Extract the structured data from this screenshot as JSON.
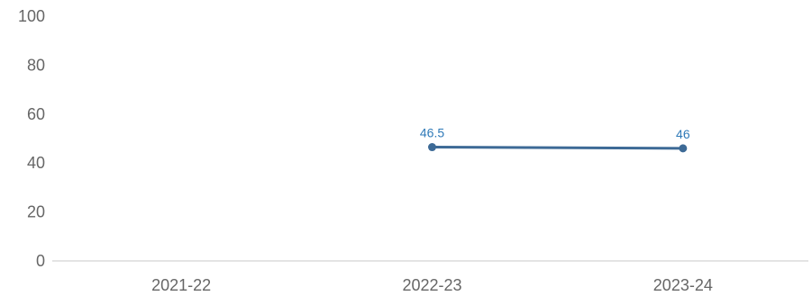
{
  "chart_data": {
    "type": "line",
    "categories": [
      "2021-22",
      "2022-23",
      "2023-24"
    ],
    "series": [
      {
        "values": [
          null,
          46.5,
          46
        ],
        "data_labels": [
          "",
          "46.5",
          "46"
        ],
        "color": "#3d6a96",
        "label_color": "#2f7ab8"
      }
    ],
    "yticks": [
      "0",
      "20",
      "40",
      "60",
      "80",
      "100"
    ],
    "ylim": [
      0,
      100
    ],
    "grid": false,
    "legend": "none",
    "title": "",
    "xlabel": "",
    "ylabel": "",
    "axis_color": "#c8c8c8"
  }
}
